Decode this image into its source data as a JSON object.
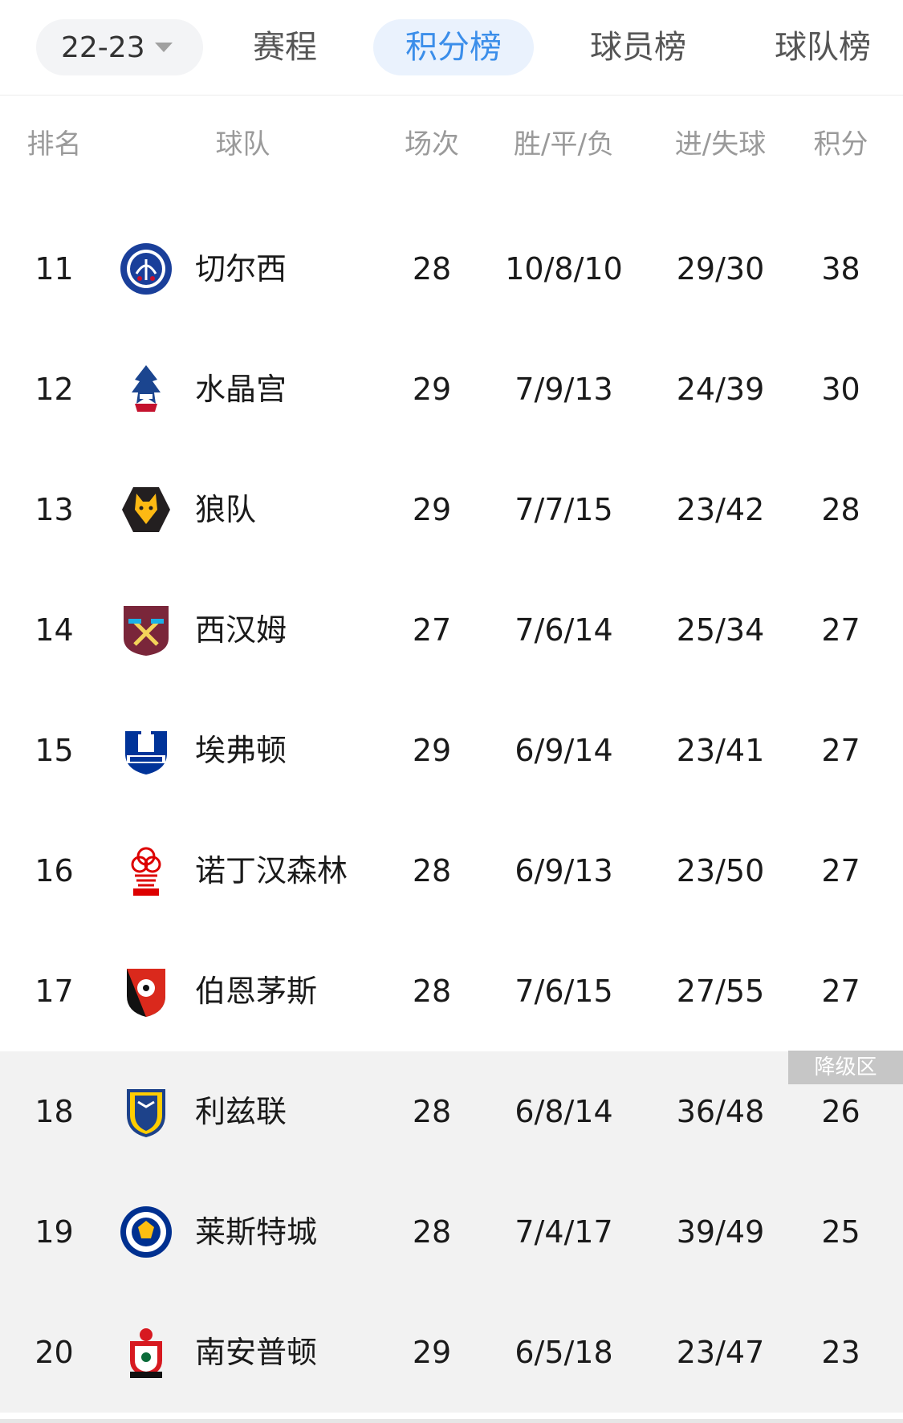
{
  "tabs": {
    "season": "22-23",
    "schedule": "赛程",
    "standings": "积分榜",
    "players": "球员榜",
    "teams": "球队榜"
  },
  "columns": {
    "rank": "排名",
    "team": "球队",
    "played": "场次",
    "wdl": "胜/平/负",
    "goals": "进/失球",
    "points": "积分"
  },
  "relegation_label": "降级区",
  "rows": [
    {
      "rank": "11",
      "team": "切尔西",
      "played": "28",
      "wdl": "10/8/10",
      "goals": "29/30",
      "points": "38",
      "crest": "chelsea-crest"
    },
    {
      "rank": "12",
      "team": "水晶宫",
      "played": "29",
      "wdl": "7/9/13",
      "goals": "24/39",
      "points": "30",
      "crest": "crystal-palace-crest"
    },
    {
      "rank": "13",
      "team": "狼队",
      "played": "29",
      "wdl": "7/7/15",
      "goals": "23/42",
      "points": "28",
      "crest": "wolves-crest"
    },
    {
      "rank": "14",
      "team": "西汉姆",
      "played": "27",
      "wdl": "7/6/14",
      "goals": "25/34",
      "points": "27",
      "crest": "west-ham-crest"
    },
    {
      "rank": "15",
      "team": "埃弗顿",
      "played": "29",
      "wdl": "6/9/14",
      "goals": "23/41",
      "points": "27",
      "crest": "everton-crest"
    },
    {
      "rank": "16",
      "team": "诺丁汉森林",
      "played": "28",
      "wdl": "6/9/13",
      "goals": "23/50",
      "points": "27",
      "crest": "nottingham-forest-crest"
    },
    {
      "rank": "17",
      "team": "伯恩茅斯",
      "played": "28",
      "wdl": "7/6/15",
      "goals": "27/55",
      "points": "27",
      "crest": "bournemouth-crest"
    },
    {
      "rank": "18",
      "team": "利兹联",
      "played": "28",
      "wdl": "6/8/14",
      "goals": "36/48",
      "points": "26",
      "crest": "leeds-crest"
    },
    {
      "rank": "19",
      "team": "莱斯特城",
      "played": "28",
      "wdl": "7/4/17",
      "goals": "39/49",
      "points": "25",
      "crest": "leicester-crest"
    },
    {
      "rank": "20",
      "team": "南安普顿",
      "played": "29",
      "wdl": "6/5/18",
      "goals": "23/47",
      "points": "23",
      "crest": "southampton-crest"
    }
  ]
}
